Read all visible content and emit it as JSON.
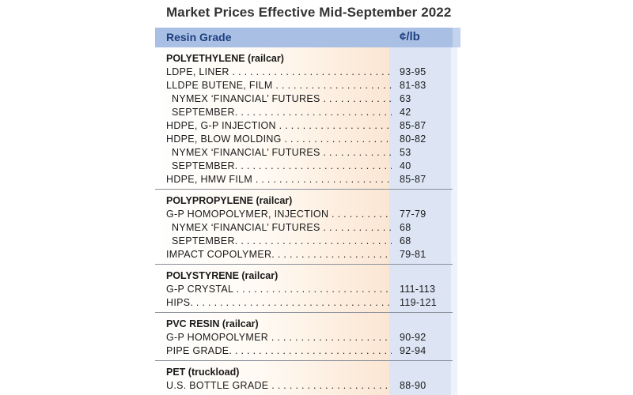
{
  "title": "Market Prices Effective Mid-September 2022",
  "header": {
    "grade": "Resin Grade",
    "unit": "¢/lb"
  },
  "sections": [
    {
      "title": "POLYETHYLENE (railcar)",
      "rows": [
        {
          "label": "LDPE, LINER",
          "value": "93-95"
        },
        {
          "label": "LLDPE BUTENE, FILM",
          "value": "81-83"
        },
        {
          "label": "NYMEX ‘FINANCIAL’ FUTURES",
          "value": "63",
          "indent": true
        },
        {
          "label": "SEPTEMBER.",
          "value": "42",
          "indent": true
        },
        {
          "label": "HDPE, G-P INJECTION",
          "value": "85-87"
        },
        {
          "label": "HDPE, BLOW MOLDING",
          "value": "80-82"
        },
        {
          "label": "NYMEX ‘FINANCIAL’ FUTURES",
          "value": "53",
          "indent": true
        },
        {
          "label": "SEPTEMBER.",
          "value": "40",
          "indent": true
        },
        {
          "label": "HDPE, HMW FILM",
          "value": "85-87"
        }
      ]
    },
    {
      "title": "POLYPROPYLENE (railcar)",
      "rows": [
        {
          "label": "G-P HOMOPOLYMER, INJECTION",
          "value": "77-79"
        },
        {
          "label": "NYMEX ‘FINANCIAL’ FUTURES",
          "value": "68",
          "indent": true
        },
        {
          "label": "SEPTEMBER.",
          "value": "68",
          "indent": true
        },
        {
          "label": "IMPACT COPOLYMER.",
          "value": "79-81"
        }
      ]
    },
    {
      "title": "POLYSTYRENE (railcar)",
      "rows": [
        {
          "label": "G-P CRYSTAL",
          "value": "111-113"
        },
        {
          "label": "HIPS.",
          "value": "119-121"
        }
      ]
    },
    {
      "title": "PVC RESIN (railcar)",
      "rows": [
        {
          "label": "G-P HOMOPOLYMER",
          "value": "90-92"
        },
        {
          "label": "PIPE GRADE.",
          "value": "92-94"
        }
      ]
    },
    {
      "title": "PET (truckload)",
      "rows": [
        {
          "label": "U.S. BOTTLE GRADE",
          "value": "88-90"
        }
      ]
    }
  ]
}
